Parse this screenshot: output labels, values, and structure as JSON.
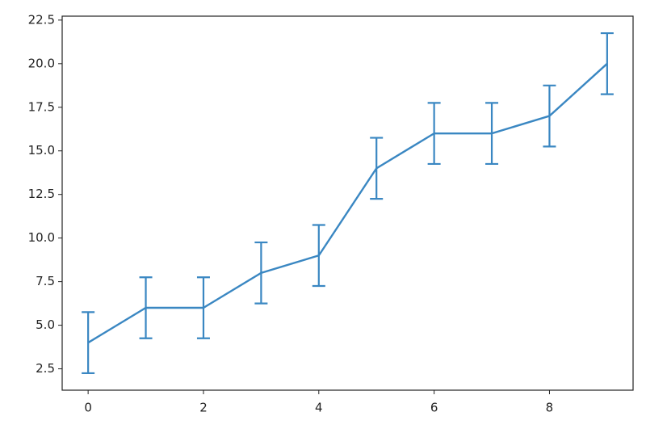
{
  "chart_data": {
    "type": "errorbar_line",
    "x": [
      0,
      1,
      2,
      3,
      4,
      5,
      6,
      7,
      8,
      9
    ],
    "values": [
      4,
      6,
      6,
      8,
      9,
      14,
      16,
      16,
      17,
      20
    ],
    "errors": [
      1.75,
      1.75,
      1.75,
      1.75,
      1.75,
      1.75,
      1.75,
      1.75,
      1.75,
      1.75
    ],
    "color": "#3a87c2",
    "xlim": [
      -0.45,
      9.45
    ],
    "ylim": [
      1.275,
      22.725
    ],
    "xticks": [
      0,
      2,
      4,
      6,
      8
    ],
    "yticks": [
      2.5,
      {
        "value": 5,
        "label": "5.0"
      },
      7.5,
      {
        "value": 10,
        "label": "10.0"
      },
      12.5,
      {
        "value": 15,
        "label": "15.0"
      },
      17.5,
      {
        "value": 20,
        "label": "20.0"
      },
      22.5
    ]
  }
}
